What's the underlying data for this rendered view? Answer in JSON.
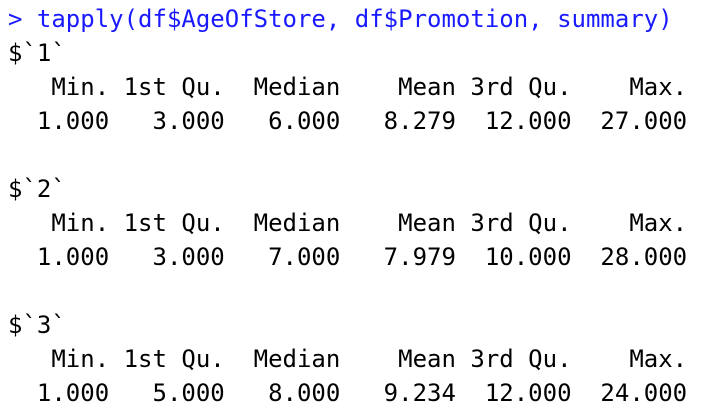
{
  "console": {
    "command": "> tapply(df$AgeOfStore, df$Promotion, summary)",
    "groups": [
      {
        "name": "$`1`",
        "header": "   Min. 1st Qu.  Median    Mean 3rd Qu.    Max.",
        "values": "  1.000   3.000   6.000   8.279  12.000  27.000"
      },
      {
        "name": "$`2`",
        "header": "   Min. 1st Qu.  Median    Mean 3rd Qu.    Max.",
        "values": "  1.000   3.000   7.000   7.979  10.000  28.000"
      },
      {
        "name": "$`3`",
        "header": "   Min. 1st Qu.  Median    Mean 3rd Qu.    Max.",
        "values": "  1.000   5.000   8.000   9.234  12.000  24.000"
      }
    ]
  },
  "colors": {
    "prompt": "#1a1aff",
    "output": "#000000",
    "background": "#ffffff"
  }
}
